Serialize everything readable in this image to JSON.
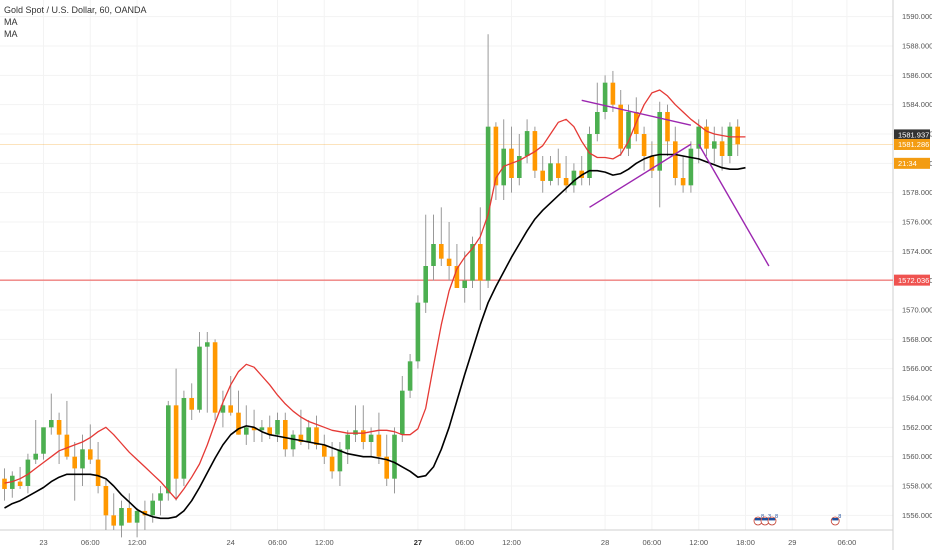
{
  "legend": {
    "title": "Gold Spot / U.S. Dollar, 60, OANDA",
    "ma1": "MA",
    "ma2": "MA"
  },
  "chart_data": {
    "type": "candlestick",
    "ylim": [
      1555,
      1591
    ],
    "y_ticks": [
      1556,
      1558,
      1560,
      1562,
      1564,
      1566,
      1568,
      1570,
      1572,
      1574,
      1576,
      1578,
      1580,
      1582,
      1584,
      1586,
      1588,
      1590
    ],
    "y_tick_labels": [
      "1556.000",
      "1558.000",
      "1560.000",
      "1562.000",
      "1564.000",
      "1566.000",
      "1568.000",
      "1570.000",
      "1572.000",
      "1574.000",
      "1576.000",
      "1578.000",
      "1580.000",
      "1582.000",
      "1584.000",
      "1586.000",
      "1588.000",
      "1590.000"
    ],
    "x_ticks": [
      {
        "label": "23",
        "bar": 5,
        "bold": false
      },
      {
        "label": "06:00",
        "bar": 11,
        "bold": false
      },
      {
        "label": "12:00",
        "bar": 17,
        "bold": false
      },
      {
        "label": "24",
        "bar": 29,
        "bold": false
      },
      {
        "label": "06:00",
        "bar": 35,
        "bold": false
      },
      {
        "label": "12:00",
        "bar": 41,
        "bold": false
      },
      {
        "label": "27",
        "bar": 53,
        "bold": true
      },
      {
        "label": "06:00",
        "bar": 59,
        "bold": false
      },
      {
        "label": "12:00",
        "bar": 65,
        "bold": false
      },
      {
        "label": "28",
        "bar": 77,
        "bold": false
      },
      {
        "label": "06:00",
        "bar": 83,
        "bold": false
      },
      {
        "label": "12:00",
        "bar": 89,
        "bold": false
      },
      {
        "label": "18:00",
        "bar": 95,
        "bold": false
      },
      {
        "label": "29",
        "bar": 101,
        "bold": false
      },
      {
        "label": "06:00",
        "bar": 108,
        "bold": false
      }
    ],
    "candles": [
      {
        "o": 1558.5,
        "h": 1559.2,
        "l": 1557.0,
        "c": 1557.8
      },
      {
        "o": 1557.8,
        "h": 1559.0,
        "l": 1557.2,
        "c": 1558.7
      },
      {
        "o": 1558.3,
        "h": 1559.3,
        "l": 1557.8,
        "c": 1558.0
      },
      {
        "o": 1558.0,
        "h": 1560.2,
        "l": 1557.5,
        "c": 1559.8
      },
      {
        "o": 1559.8,
        "h": 1562.5,
        "l": 1559.5,
        "c": 1560.2
      },
      {
        "o": 1560.2,
        "h": 1562.0,
        "l": 1559.8,
        "c": 1562.0
      },
      {
        "o": 1562.0,
        "h": 1564.3,
        "l": 1561.5,
        "c": 1562.5
      },
      {
        "o": 1562.5,
        "h": 1563.0,
        "l": 1559.5,
        "c": 1561.5
      },
      {
        "o": 1561.5,
        "h": 1563.8,
        "l": 1559.8,
        "c": 1560.0
      },
      {
        "o": 1560.0,
        "h": 1561.0,
        "l": 1557.0,
        "c": 1559.2
      },
      {
        "o": 1559.2,
        "h": 1561.5,
        "l": 1558.0,
        "c": 1560.5
      },
      {
        "o": 1560.5,
        "h": 1562.2,
        "l": 1559.5,
        "c": 1559.8
      },
      {
        "o": 1559.8,
        "h": 1561.0,
        "l": 1557.5,
        "c": 1558.0
      },
      {
        "o": 1558.0,
        "h": 1558.5,
        "l": 1555.0,
        "c": 1556.0
      },
      {
        "o": 1556.0,
        "h": 1557.5,
        "l": 1555.0,
        "c": 1555.3
      },
      {
        "o": 1555.3,
        "h": 1557.0,
        "l": 1554.5,
        "c": 1556.5
      },
      {
        "o": 1556.5,
        "h": 1557.5,
        "l": 1555.5,
        "c": 1555.5
      },
      {
        "o": 1555.5,
        "h": 1556.5,
        "l": 1554.5,
        "c": 1556.3
      },
      {
        "o": 1556.3,
        "h": 1557.0,
        "l": 1555.0,
        "c": 1556.0
      },
      {
        "o": 1556.0,
        "h": 1557.5,
        "l": 1555.5,
        "c": 1557.0
      },
      {
        "o": 1557.0,
        "h": 1558.0,
        "l": 1556.0,
        "c": 1557.5
      },
      {
        "o": 1557.5,
        "h": 1563.8,
        "l": 1557.0,
        "c": 1563.5
      },
      {
        "o": 1563.5,
        "h": 1566.0,
        "l": 1557.0,
        "c": 1558.5
      },
      {
        "o": 1558.5,
        "h": 1564.5,
        "l": 1558.0,
        "c": 1564.0
      },
      {
        "o": 1564.0,
        "h": 1565.0,
        "l": 1562.5,
        "c": 1563.2
      },
      {
        "o": 1563.2,
        "h": 1568.5,
        "l": 1563.0,
        "c": 1567.5
      },
      {
        "o": 1567.5,
        "h": 1568.5,
        "l": 1563.0,
        "c": 1567.8
      },
      {
        "o": 1567.8,
        "h": 1568.0,
        "l": 1562.5,
        "c": 1563.0
      },
      {
        "o": 1563.0,
        "h": 1564.5,
        "l": 1562.0,
        "c": 1563.5
      },
      {
        "o": 1563.5,
        "h": 1565.5,
        "l": 1562.8,
        "c": 1563.0
      },
      {
        "o": 1563.0,
        "h": 1564.5,
        "l": 1561.5,
        "c": 1561.5
      },
      {
        "o": 1561.5,
        "h": 1563.5,
        "l": 1560.8,
        "c": 1562.0
      },
      {
        "o": 1562.0,
        "h": 1563.2,
        "l": 1561.0,
        "c": 1561.8
      },
      {
        "o": 1561.8,
        "h": 1562.5,
        "l": 1561.0,
        "c": 1562.0
      },
      {
        "o": 1562.0,
        "h": 1562.8,
        "l": 1561.2,
        "c": 1561.5
      },
      {
        "o": 1561.5,
        "h": 1563.0,
        "l": 1561.0,
        "c": 1562.5
      },
      {
        "o": 1562.5,
        "h": 1563.0,
        "l": 1560.0,
        "c": 1560.5
      },
      {
        "o": 1560.5,
        "h": 1561.8,
        "l": 1560.0,
        "c": 1561.5
      },
      {
        "o": 1561.5,
        "h": 1563.2,
        "l": 1560.8,
        "c": 1561.0
      },
      {
        "o": 1561.0,
        "h": 1562.5,
        "l": 1560.5,
        "c": 1562.0
      },
      {
        "o": 1562.0,
        "h": 1562.8,
        "l": 1560.5,
        "c": 1560.8
      },
      {
        "o": 1560.8,
        "h": 1561.5,
        "l": 1559.5,
        "c": 1560.0
      },
      {
        "o": 1560.0,
        "h": 1561.0,
        "l": 1558.5,
        "c": 1559.0
      },
      {
        "o": 1559.0,
        "h": 1561.0,
        "l": 1558.0,
        "c": 1560.5
      },
      {
        "o": 1560.5,
        "h": 1561.8,
        "l": 1559.5,
        "c": 1561.5
      },
      {
        "o": 1561.5,
        "h": 1563.5,
        "l": 1561.0,
        "c": 1561.8
      },
      {
        "o": 1561.8,
        "h": 1563.5,
        "l": 1560.5,
        "c": 1561.0
      },
      {
        "o": 1561.0,
        "h": 1562.0,
        "l": 1560.0,
        "c": 1561.5
      },
      {
        "o": 1561.5,
        "h": 1563.0,
        "l": 1559.5,
        "c": 1560.0
      },
      {
        "o": 1560.0,
        "h": 1561.5,
        "l": 1558.0,
        "c": 1558.5
      },
      {
        "o": 1558.5,
        "h": 1562.0,
        "l": 1557.5,
        "c": 1561.5
      },
      {
        "o": 1561.5,
        "h": 1565.5,
        "l": 1561.0,
        "c": 1564.5
      },
      {
        "o": 1564.5,
        "h": 1567.0,
        "l": 1564.0,
        "c": 1566.5
      },
      {
        "o": 1566.5,
        "h": 1571.0,
        "l": 1566.0,
        "c": 1570.5
      },
      {
        "o": 1570.5,
        "h": 1576.5,
        "l": 1569.8,
        "c": 1573.0
      },
      {
        "o": 1573.0,
        "h": 1576.5,
        "l": 1572.0,
        "c": 1574.5
      },
      {
        "o": 1574.5,
        "h": 1577.0,
        "l": 1573.0,
        "c": 1573.5
      },
      {
        "o": 1573.5,
        "h": 1576.0,
        "l": 1572.0,
        "c": 1573.0
      },
      {
        "o": 1573.0,
        "h": 1574.5,
        "l": 1571.5,
        "c": 1571.5
      },
      {
        "o": 1571.5,
        "h": 1574.0,
        "l": 1570.5,
        "c": 1572.0
      },
      {
        "o": 1572.0,
        "h": 1575.0,
        "l": 1571.5,
        "c": 1574.5
      },
      {
        "o": 1574.5,
        "h": 1577.0,
        "l": 1570.0,
        "c": 1572.0
      },
      {
        "o": 1572.0,
        "h": 1588.8,
        "l": 1571.5,
        "c": 1582.5
      },
      {
        "o": 1582.5,
        "h": 1582.8,
        "l": 1577.5,
        "c": 1578.5
      },
      {
        "o": 1578.5,
        "h": 1583.0,
        "l": 1577.5,
        "c": 1581.0
      },
      {
        "o": 1581.0,
        "h": 1582.5,
        "l": 1578.0,
        "c": 1579.0
      },
      {
        "o": 1579.0,
        "h": 1582.0,
        "l": 1578.5,
        "c": 1580.5
      },
      {
        "o": 1580.5,
        "h": 1583.0,
        "l": 1580.0,
        "c": 1582.2
      },
      {
        "o": 1582.2,
        "h": 1582.5,
        "l": 1579.0,
        "c": 1579.5
      },
      {
        "o": 1579.5,
        "h": 1580.5,
        "l": 1578.0,
        "c": 1578.8
      },
      {
        "o": 1578.8,
        "h": 1580.5,
        "l": 1578.5,
        "c": 1580.0
      },
      {
        "o": 1580.0,
        "h": 1581.0,
        "l": 1578.5,
        "c": 1579.0
      },
      {
        "o": 1579.0,
        "h": 1580.5,
        "l": 1578.0,
        "c": 1578.5
      },
      {
        "o": 1578.5,
        "h": 1580.0,
        "l": 1578.0,
        "c": 1579.5
      },
      {
        "o": 1579.5,
        "h": 1580.5,
        "l": 1578.5,
        "c": 1579.0
      },
      {
        "o": 1579.0,
        "h": 1582.5,
        "l": 1578.5,
        "c": 1582.0
      },
      {
        "o": 1582.0,
        "h": 1585.5,
        "l": 1581.5,
        "c": 1583.5
      },
      {
        "o": 1583.5,
        "h": 1586.0,
        "l": 1583.0,
        "c": 1585.5
      },
      {
        "o": 1585.5,
        "h": 1586.3,
        "l": 1583.5,
        "c": 1584.0
      },
      {
        "o": 1584.0,
        "h": 1585.0,
        "l": 1580.5,
        "c": 1581.0
      },
      {
        "o": 1581.0,
        "h": 1584.0,
        "l": 1580.5,
        "c": 1583.5
      },
      {
        "o": 1583.5,
        "h": 1584.5,
        "l": 1581.5,
        "c": 1582.0
      },
      {
        "o": 1582.0,
        "h": 1582.5,
        "l": 1579.5,
        "c": 1580.5
      },
      {
        "o": 1580.5,
        "h": 1581.5,
        "l": 1579.0,
        "c": 1579.5
      },
      {
        "o": 1579.5,
        "h": 1584.2,
        "l": 1577.0,
        "c": 1583.5
      },
      {
        "o": 1583.5,
        "h": 1584.0,
        "l": 1580.5,
        "c": 1581.5
      },
      {
        "o": 1581.5,
        "h": 1582.5,
        "l": 1578.5,
        "c": 1579.0
      },
      {
        "o": 1579.0,
        "h": 1580.5,
        "l": 1578.0,
        "c": 1578.5
      },
      {
        "o": 1578.5,
        "h": 1581.5,
        "l": 1578.0,
        "c": 1581.0
      },
      {
        "o": 1581.0,
        "h": 1583.0,
        "l": 1580.0,
        "c": 1582.5
      },
      {
        "o": 1582.5,
        "h": 1583.0,
        "l": 1580.5,
        "c": 1581.0
      },
      {
        "o": 1581.0,
        "h": 1582.5,
        "l": 1580.0,
        "c": 1581.5
      },
      {
        "o": 1581.5,
        "h": 1582.5,
        "l": 1579.5,
        "c": 1580.5
      },
      {
        "o": 1580.5,
        "h": 1582.8,
        "l": 1580.0,
        "c": 1582.5
      },
      {
        "o": 1582.5,
        "h": 1583.0,
        "l": 1580.5,
        "c": 1581.3
      }
    ],
    "red_ma": [
      1558.2,
      1558.3,
      1558.5,
      1558.8,
      1559.2,
      1559.6,
      1560.0,
      1560.4,
      1560.6,
      1560.8,
      1561.0,
      1561.3,
      1561.7,
      1562.0,
      1561.5,
      1560.9,
      1560.3,
      1559.8,
      1559.3,
      1558.8,
      1558.3,
      1557.7,
      1557.1,
      1557.8,
      1558.6,
      1559.5,
      1560.8,
      1562.3,
      1563.7,
      1564.9,
      1565.8,
      1566.3,
      1566.1,
      1565.5,
      1564.9,
      1564.2,
      1563.6,
      1563.1,
      1562.7,
      1562.4,
      1562.2,
      1562.0,
      1561.8,
      1561.7,
      1561.6,
      1561.6,
      1561.6,
      1561.7,
      1561.8,
      1561.8,
      1561.7,
      1561.5,
      1561.5,
      1561.9,
      1563.3,
      1566.2,
      1569.0,
      1571.3,
      1572.8,
      1573.6,
      1574.2,
      1575.0,
      1576.5,
      1579.0,
      1579.8,
      1580.0,
      1580.2,
      1580.5,
      1580.8,
      1581.2,
      1582.0,
      1582.8,
      1583.0,
      1582.5,
      1581.5,
      1580.7,
      1580.4,
      1580.4,
      1580.3,
      1580.6,
      1581.5,
      1582.8,
      1584.0,
      1584.8,
      1585.0,
      1584.6,
      1584.0,
      1583.5,
      1583.0,
      1582.6,
      1582.2,
      1582.0,
      1581.9,
      1581.8,
      1581.8,
      1581.8
    ],
    "black_ma": [
      1556.5,
      1556.8,
      1557.0,
      1557.3,
      1557.6,
      1557.9,
      1558.3,
      1558.6,
      1558.8,
      1558.8,
      1558.8,
      1558.8,
      1558.7,
      1558.5,
      1558.0,
      1557.4,
      1556.9,
      1556.4,
      1556.1,
      1555.9,
      1555.8,
      1555.8,
      1555.9,
      1556.3,
      1557.0,
      1557.9,
      1558.9,
      1559.9,
      1560.8,
      1561.5,
      1561.9,
      1562.1,
      1562.0,
      1561.7,
      1561.5,
      1561.4,
      1561.3,
      1561.2,
      1561.1,
      1561.0,
      1560.9,
      1560.8,
      1560.6,
      1560.4,
      1560.2,
      1560.1,
      1560.0,
      1560.0,
      1559.9,
      1559.8,
      1559.6,
      1559.3,
      1559.0,
      1558.6,
      1558.7,
      1559.3,
      1560.5,
      1562.0,
      1563.8,
      1565.6,
      1567.3,
      1569.0,
      1570.5,
      1571.6,
      1572.6,
      1573.6,
      1574.5,
      1575.4,
      1576.2,
      1576.8,
      1577.3,
      1577.8,
      1578.3,
      1578.8,
      1579.2,
      1579.5,
      1579.5,
      1579.4,
      1579.2,
      1579.3,
      1579.6,
      1580.0,
      1580.3,
      1580.5,
      1580.6,
      1580.6,
      1580.6,
      1580.5,
      1580.4,
      1580.3,
      1580.1,
      1579.9,
      1579.7,
      1579.6,
      1579.6,
      1579.7
    ],
    "trendlines": [
      {
        "from": [
          74,
          1584.3
        ],
        "to": [
          88,
          1582.6
        ],
        "color": "#9c27b0"
      },
      {
        "from": [
          75,
          1577.0
        ],
        "to": [
          88,
          1581.3
        ],
        "color": "#9c27b0"
      },
      {
        "from": [
          89,
          1581.3
        ],
        "to": [
          98,
          1573.0
        ],
        "color": "#9c27b0"
      }
    ],
    "hlines": [
      {
        "y": 1572.036,
        "color": "#ef5350",
        "label": "1572.036"
      },
      {
        "y": 1581.286,
        "color": "#f39c12",
        "label": "1581.286"
      }
    ],
    "price_labels": [
      {
        "y": 1581.937,
        "text": "1581.937",
        "color": "#333333"
      },
      {
        "y": 1581.286,
        "text": "1581.286",
        "color": "#f39c12"
      },
      {
        "y": 1580.0,
        "text": "21:34",
        "color": "#f39c12"
      }
    ],
    "event_badges": [
      {
        "bar": 97.5,
        "text": "8 3 8"
      },
      {
        "bar": 106.5,
        "text": "8"
      }
    ],
    "colors": {
      "up": "#4caf50",
      "down": "#ff9800",
      "wick": "#999999",
      "ma_fast": "#e53935",
      "ma_slow": "#000000"
    }
  }
}
